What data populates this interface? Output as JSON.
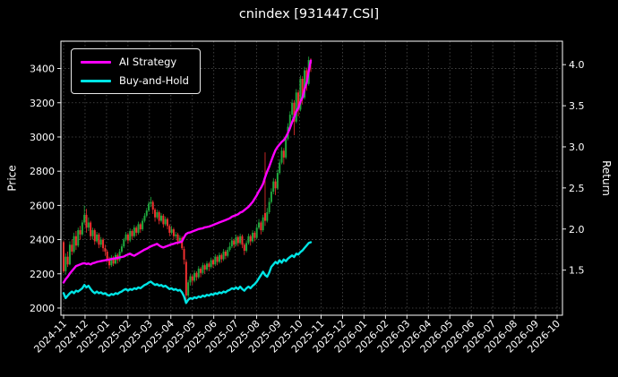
{
  "window_title": "cnindex [931447.CSI]",
  "chart_data": {
    "type": "candlestick+line",
    "title": "cnindex [931447.CSI]",
    "background": "#000000",
    "text_color": "#ffffff",
    "grid": {
      "visible": true,
      "style": "dashed",
      "color": "#4d4d4d"
    },
    "left_axis": {
      "label": "Price",
      "ticks": [
        2000,
        2200,
        2400,
        2600,
        2800,
        3000,
        3200,
        3400
      ],
      "range": [
        1958,
        3560
      ]
    },
    "right_axis": {
      "label": "Return",
      "ticks": [
        1.5,
        2.0,
        2.5,
        3.0,
        3.5,
        4.0
      ],
      "range": [
        0.952,
        4.285
      ]
    },
    "x_axis": {
      "tick_labels": [
        "2024-11",
        "2024-12",
        "2025-01",
        "2025-02",
        "2025-03",
        "2025-04",
        "2025-05",
        "2025-06",
        "2025-07",
        "2025-08",
        "2025-09",
        "2025-10",
        "2025-11",
        "2025-12",
        "2026-01",
        "2026-02",
        "2026-03",
        "2026-04",
        "2026-05",
        "2026-06",
        "2026-07",
        "2026-08",
        "2026-09",
        "2026-10"
      ],
      "label_rotation_deg": 45,
      "data_start": "2024-11",
      "data_end": "2025-10"
    },
    "legend": {
      "position": "upper left",
      "entries": [
        {
          "label": "AI Strategy",
          "color": "#ff00ff"
        },
        {
          "label": "Buy-and-Hold",
          "color": "#00e5e5"
        }
      ]
    },
    "candles": {
      "up_color": "#1fa83d",
      "down_color": "#f03030",
      "ohlc": [
        [
          2385,
          2395,
          2205,
          2215
        ],
        [
          2215,
          2320,
          2195,
          2300
        ],
        [
          2300,
          2330,
          2240,
          2255
        ],
        [
          2255,
          2390,
          2250,
          2370
        ],
        [
          2370,
          2400,
          2310,
          2330
        ],
        [
          2330,
          2440,
          2320,
          2420
        ],
        [
          2420,
          2450,
          2340,
          2365
        ],
        [
          2365,
          2470,
          2355,
          2455
        ],
        [
          2455,
          2480,
          2400,
          2430
        ],
        [
          2430,
          2515,
          2420,
          2500
        ],
        [
          2500,
          2600,
          2490,
          2545
        ],
        [
          2545,
          2580,
          2440,
          2470
        ],
        [
          2470,
          2530,
          2450,
          2500
        ],
        [
          2500,
          2510,
          2400,
          2420
        ],
        [
          2420,
          2470,
          2400,
          2455
        ],
        [
          2455,
          2465,
          2370,
          2390
        ],
        [
          2390,
          2445,
          2380,
          2430
        ],
        [
          2430,
          2440,
          2350,
          2370
        ],
        [
          2370,
          2415,
          2355,
          2400
        ],
        [
          2400,
          2410,
          2330,
          2350
        ],
        [
          2350,
          2370,
          2305,
          2330
        ],
        [
          2330,
          2340,
          2265,
          2285
        ],
        [
          2285,
          2300,
          2230,
          2250
        ],
        [
          2250,
          2310,
          2240,
          2295
        ],
        [
          2295,
          2305,
          2245,
          2260
        ],
        [
          2260,
          2325,
          2255,
          2310
        ],
        [
          2310,
          2320,
          2260,
          2280
        ],
        [
          2280,
          2345,
          2270,
          2330
        ],
        [
          2330,
          2375,
          2320,
          2360
        ],
        [
          2360,
          2410,
          2350,
          2400
        ],
        [
          2400,
          2445,
          2390,
          2430
        ],
        [
          2430,
          2440,
          2375,
          2395
        ],
        [
          2395,
          2465,
          2385,
          2450
        ],
        [
          2450,
          2460,
          2400,
          2420
        ],
        [
          2420,
          2485,
          2410,
          2470
        ],
        [
          2470,
          2480,
          2420,
          2440
        ],
        [
          2440,
          2505,
          2430,
          2490
        ],
        [
          2490,
          2500,
          2440,
          2460
        ],
        [
          2460,
          2525,
          2450,
          2510
        ],
        [
          2510,
          2555,
          2500,
          2540
        ],
        [
          2540,
          2585,
          2530,
          2570
        ],
        [
          2570,
          2625,
          2560,
          2610
        ],
        [
          2610,
          2650,
          2590,
          2620
        ],
        [
          2620,
          2630,
          2550,
          2575
        ],
        [
          2575,
          2585,
          2505,
          2530
        ],
        [
          2530,
          2575,
          2520,
          2560
        ],
        [
          2560,
          2570,
          2490,
          2510
        ],
        [
          2510,
          2555,
          2500,
          2540
        ],
        [
          2540,
          2550,
          2470,
          2490
        ],
        [
          2490,
          2535,
          2480,
          2520
        ],
        [
          2520,
          2530,
          2460,
          2480
        ],
        [
          2480,
          2490,
          2420,
          2440
        ],
        [
          2440,
          2480,
          2430,
          2460
        ],
        [
          2460,
          2470,
          2400,
          2420
        ],
        [
          2420,
          2445,
          2405,
          2430
        ],
        [
          2430,
          2440,
          2370,
          2390
        ],
        [
          2390,
          2425,
          2380,
          2410
        ],
        [
          2410,
          2420,
          2340,
          2350
        ],
        [
          2345,
          2360,
          2255,
          2283
        ],
        [
          2270,
          2285,
          2030,
          2073
        ],
        [
          2073,
          2165,
          2060,
          2150
        ],
        [
          2150,
          2200,
          2130,
          2185
        ],
        [
          2185,
          2195,
          2135,
          2160
        ],
        [
          2160,
          2220,
          2150,
          2205
        ],
        [
          2205,
          2215,
          2160,
          2180
        ],
        [
          2180,
          2245,
          2170,
          2230
        ],
        [
          2230,
          2240,
          2180,
          2205
        ],
        [
          2205,
          2265,
          2195,
          2250
        ],
        [
          2250,
          2260,
          2200,
          2225
        ],
        [
          2225,
          2275,
          2215,
          2260
        ],
        [
          2260,
          2270,
          2215,
          2240
        ],
        [
          2240,
          2295,
          2230,
          2280
        ],
        [
          2280,
          2290,
          2235,
          2255
        ],
        [
          2255,
          2315,
          2245,
          2300
        ],
        [
          2300,
          2310,
          2250,
          2270
        ],
        [
          2270,
          2325,
          2260,
          2310
        ],
        [
          2310,
          2320,
          2265,
          2285
        ],
        [
          2285,
          2345,
          2275,
          2330
        ],
        [
          2330,
          2340,
          2285,
          2305
        ],
        [
          2305,
          2355,
          2295,
          2340
        ],
        [
          2340,
          2385,
          2330,
          2360
        ],
        [
          2360,
          2415,
          2350,
          2395
        ],
        [
          2395,
          2405,
          2350,
          2370
        ],
        [
          2370,
          2430,
          2360,
          2415
        ],
        [
          2415,
          2425,
          2360,
          2380
        ],
        [
          2380,
          2435,
          2370,
          2420
        ],
        [
          2420,
          2430,
          2350,
          2370
        ],
        [
          2370,
          2380,
          2310,
          2335
        ],
        [
          2335,
          2395,
          2325,
          2380
        ],
        [
          2380,
          2435,
          2370,
          2420
        ],
        [
          2420,
          2430,
          2365,
          2390
        ],
        [
          2390,
          2455,
          2380,
          2440
        ],
        [
          2440,
          2450,
          2390,
          2410
        ],
        [
          2410,
          2485,
          2400,
          2470
        ],
        [
          2470,
          2520,
          2460,
          2500
        ],
        [
          2500,
          2510,
          2430,
          2455
        ],
        [
          2455,
          2545,
          2445,
          2530
        ],
        [
          2555,
          2910,
          2480,
          2510
        ],
        [
          2510,
          2585,
          2500,
          2560
        ],
        [
          2560,
          2645,
          2550,
          2620
        ],
        [
          2620,
          2700,
          2610,
          2680
        ],
        [
          2680,
          2760,
          2665,
          2740
        ],
        [
          2740,
          2755,
          2660,
          2700
        ],
        [
          2700,
          2810,
          2690,
          2790
        ],
        [
          2790,
          2870,
          2780,
          2850
        ],
        [
          2850,
          2940,
          2840,
          2920
        ],
        [
          2920,
          2935,
          2840,
          2880
        ],
        [
          2880,
          3005,
          2870,
          2990
        ],
        [
          2990,
          3080,
          2980,
          3060
        ],
        [
          3060,
          3150,
          3040,
          3130
        ],
        [
          3130,
          3220,
          3110,
          3200
        ],
        [
          3200,
          3215,
          3010,
          3090
        ],
        [
          3090,
          3280,
          3080,
          3260
        ],
        [
          3260,
          3275,
          3120,
          3160
        ],
        [
          3160,
          3360,
          3150,
          3340
        ],
        [
          3340,
          3355,
          3190,
          3230
        ],
        [
          3230,
          3410,
          3220,
          3390
        ],
        [
          3390,
          3405,
          3270,
          3310
        ],
        [
          3310,
          3470,
          3300,
          3450
        ],
        [
          3450,
          3460,
          3380,
          3430
        ]
      ]
    },
    "series": [
      {
        "name": "AI Strategy",
        "axis": "right",
        "color": "#ff00ff",
        "line_width": 2.4,
        "values": [
          1.35,
          1.39,
          1.42,
          1.46,
          1.49,
          1.52,
          1.55,
          1.56,
          1.57,
          1.58,
          1.585,
          1.575,
          1.58,
          1.57,
          1.585,
          1.59,
          1.6,
          1.605,
          1.61,
          1.615,
          1.62,
          1.625,
          1.63,
          1.635,
          1.64,
          1.645,
          1.65,
          1.655,
          1.66,
          1.665,
          1.68,
          1.69,
          1.7,
          1.685,
          1.675,
          1.69,
          1.705,
          1.72,
          1.735,
          1.75,
          1.76,
          1.775,
          1.79,
          1.8,
          1.81,
          1.82,
          1.8,
          1.785,
          1.775,
          1.785,
          1.795,
          1.805,
          1.815,
          1.82,
          1.83,
          1.835,
          1.84,
          1.85,
          1.9,
          1.94,
          1.955,
          1.96,
          1.97,
          1.98,
          1.99,
          2.0,
          2.005,
          2.01,
          2.02,
          2.025,
          2.03,
          2.04,
          2.05,
          2.06,
          2.07,
          2.08,
          2.09,
          2.1,
          2.11,
          2.12,
          2.13,
          2.15,
          2.16,
          2.17,
          2.18,
          2.2,
          2.21,
          2.23,
          2.25,
          2.27,
          2.3,
          2.33,
          2.37,
          2.41,
          2.46,
          2.5,
          2.55,
          2.63,
          2.7,
          2.76,
          2.83,
          2.9,
          2.96,
          3.0,
          3.03,
          3.06,
          3.08,
          3.12,
          3.17,
          3.23,
          3.3,
          3.36,
          3.43,
          3.47,
          3.55,
          3.6,
          3.7,
          3.78,
          3.92,
          4.05
        ]
      },
      {
        "name": "Buy-and-Hold",
        "axis": "right",
        "color": "#00e5e5",
        "line_width": 2.4,
        "values": [
          1.22,
          1.16,
          1.19,
          1.22,
          1.24,
          1.22,
          1.25,
          1.24,
          1.26,
          1.28,
          1.32,
          1.29,
          1.31,
          1.27,
          1.24,
          1.22,
          1.24,
          1.22,
          1.23,
          1.21,
          1.22,
          1.2,
          1.19,
          1.21,
          1.2,
          1.22,
          1.21,
          1.23,
          1.24,
          1.26,
          1.27,
          1.25,
          1.27,
          1.26,
          1.28,
          1.27,
          1.29,
          1.28,
          1.3,
          1.32,
          1.33,
          1.35,
          1.36,
          1.34,
          1.32,
          1.33,
          1.31,
          1.32,
          1.3,
          1.31,
          1.29,
          1.27,
          1.28,
          1.26,
          1.27,
          1.25,
          1.26,
          1.23,
          1.18,
          1.1,
          1.14,
          1.16,
          1.15,
          1.17,
          1.16,
          1.18,
          1.17,
          1.19,
          1.18,
          1.2,
          1.19,
          1.21,
          1.2,
          1.22,
          1.21,
          1.23,
          1.22,
          1.24,
          1.23,
          1.25,
          1.26,
          1.28,
          1.27,
          1.29,
          1.27,
          1.3,
          1.27,
          1.25,
          1.28,
          1.3,
          1.28,
          1.31,
          1.33,
          1.36,
          1.4,
          1.44,
          1.48,
          1.44,
          1.42,
          1.47,
          1.54,
          1.57,
          1.6,
          1.58,
          1.62,
          1.59,
          1.63,
          1.61,
          1.64,
          1.66,
          1.68,
          1.66,
          1.7,
          1.69,
          1.72,
          1.74,
          1.77,
          1.8,
          1.83,
          1.84
        ]
      }
    ]
  }
}
